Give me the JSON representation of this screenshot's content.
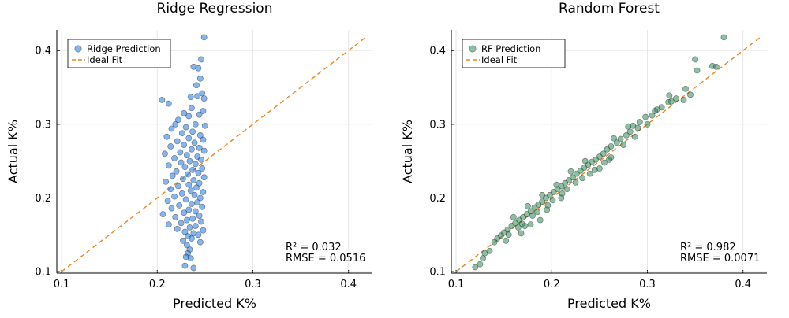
{
  "chart_data": [
    {
      "type": "scatter",
      "title": "Ridge Regression",
      "xlabel": "Predicted K%",
      "ylabel": "Actual K%",
      "xlim": [
        0.095,
        0.425
      ],
      "ylim": [
        0.098,
        0.428
      ],
      "xticks": [
        "0.1",
        "0.2",
        "0.3",
        "0.4"
      ],
      "yticks": [
        "0.1",
        "0.2",
        "0.3",
        "0.4"
      ],
      "grid": true,
      "legend_position": "top-left",
      "series": [
        {
          "name": "Ridge Prediction",
          "kind": "points",
          "color": "#1f78e0",
          "points": [
            [
              0.249,
              0.418
            ],
            [
              0.246,
              0.388
            ],
            [
              0.238,
              0.378
            ],
            [
              0.243,
              0.376
            ],
            [
              0.245,
              0.362
            ],
            [
              0.241,
              0.353
            ],
            [
              0.247,
              0.342
            ],
            [
              0.242,
              0.338
            ],
            [
              0.235,
              0.337
            ],
            [
              0.249,
              0.335
            ],
            [
              0.205,
              0.333
            ],
            [
              0.212,
              0.328
            ],
            [
              0.236,
              0.322
            ],
            [
              0.248,
              0.318
            ],
            [
              0.228,
              0.315
            ],
            [
              0.244,
              0.313
            ],
            [
              0.233,
              0.311
            ],
            [
              0.222,
              0.306
            ],
            [
              0.219,
              0.3
            ],
            [
              0.24,
              0.3
            ],
            [
              0.25,
              0.298
            ],
            [
              0.23,
              0.296
            ],
            [
              0.215,
              0.294
            ],
            [
              0.237,
              0.29
            ],
            [
              0.226,
              0.288
            ],
            [
              0.245,
              0.285
            ],
            [
              0.21,
              0.283
            ],
            [
              0.233,
              0.281
            ],
            [
              0.248,
              0.279
            ],
            [
              0.221,
              0.277
            ],
            [
              0.239,
              0.275
            ],
            [
              0.228,
              0.272
            ],
            [
              0.214,
              0.27
            ],
            [
              0.244,
              0.268
            ],
            [
              0.236,
              0.266
            ],
            [
              0.249,
              0.264
            ],
            [
              0.224,
              0.262
            ],
            [
              0.208,
              0.26
            ],
            [
              0.231,
              0.258
            ],
            [
              0.242,
              0.256
            ],
            [
              0.218,
              0.254
            ],
            [
              0.246,
              0.252
            ],
            [
              0.234,
              0.25
            ],
            [
              0.225,
              0.248
            ],
            [
              0.24,
              0.246
            ],
            [
              0.212,
              0.244
            ],
            [
              0.229,
              0.242
            ],
            [
              0.247,
              0.24
            ],
            [
              0.237,
              0.238
            ],
            [
              0.22,
              0.236
            ],
            [
              0.243,
              0.234
            ],
            [
              0.232,
              0.232
            ],
            [
              0.216,
              0.23
            ],
            [
              0.249,
              0.228
            ],
            [
              0.227,
              0.226
            ],
            [
              0.238,
              0.224
            ],
            [
              0.209,
              0.222
            ],
            [
              0.244,
              0.22
            ],
            [
              0.233,
              0.218
            ],
            [
              0.222,
              0.216
            ],
            [
              0.241,
              0.214
            ],
            [
              0.214,
              0.212
            ],
            [
              0.235,
              0.21
            ],
            [
              0.248,
              0.208
            ],
            [
              0.226,
              0.206
            ],
            [
              0.239,
              0.204
            ],
            [
              0.218,
              0.202
            ],
            [
              0.245,
              0.2
            ],
            [
              0.23,
              0.198
            ],
            [
              0.211,
              0.196
            ],
            [
              0.242,
              0.194
            ],
            [
              0.236,
              0.192
            ],
            [
              0.223,
              0.19
            ],
            [
              0.247,
              0.188
            ],
            [
              0.215,
              0.186
            ],
            [
              0.233,
              0.184
            ],
            [
              0.24,
              0.182
            ],
            [
              0.228,
              0.18
            ],
            [
              0.206,
              0.178
            ],
            [
              0.244,
              0.176
            ],
            [
              0.219,
              0.174
            ],
            [
              0.237,
              0.172
            ],
            [
              0.231,
              0.17
            ],
            [
              0.246,
              0.168
            ],
            [
              0.225,
              0.166
            ],
            [
              0.212,
              0.164
            ],
            [
              0.24,
              0.162
            ],
            [
              0.234,
              0.16
            ],
            [
              0.221,
              0.158
            ],
            [
              0.248,
              0.156
            ],
            [
              0.229,
              0.154
            ],
            [
              0.238,
              0.152
            ],
            [
              0.243,
              0.15
            ],
            [
              0.232,
              0.148
            ],
            [
              0.236,
              0.145
            ],
            [
              0.227,
              0.142
            ],
            [
              0.245,
              0.14
            ],
            [
              0.231,
              0.136
            ],
            [
              0.234,
              0.13
            ],
            [
              0.232,
              0.125
            ],
            [
              0.23,
              0.12
            ],
            [
              0.235,
              0.118
            ],
            [
              0.229,
              0.108
            ],
            [
              0.238,
              0.105
            ]
          ]
        },
        {
          "name": "Ideal Fit",
          "kind": "line",
          "color": "#e8871e",
          "dashed": true,
          "x": [
            0.1,
            0.42
          ],
          "y": [
            0.1,
            0.42
          ]
        }
      ],
      "annotations": [
        "R² = 0.032",
        "RMSE = 0.0516"
      ]
    },
    {
      "type": "scatter",
      "title": "Random Forest",
      "xlabel": "Predicted K%",
      "ylabel": "Actual K%",
      "xlim": [
        0.095,
        0.425
      ],
      "ylim": [
        0.098,
        0.428
      ],
      "xticks": [
        "0.1",
        "0.2",
        "0.3",
        "0.4"
      ],
      "yticks": [
        "0.1",
        "0.2",
        "0.3",
        "0.4"
      ],
      "grid": true,
      "legend_position": "top-left",
      "series": [
        {
          "name": "RF Prediction",
          "kind": "points",
          "color": "#2e8b57",
          "points": [
            [
              0.38,
              0.418
            ],
            [
              0.35,
              0.388
            ],
            [
              0.368,
              0.379
            ],
            [
              0.372,
              0.378
            ],
            [
              0.352,
              0.373
            ],
            [
              0.34,
              0.348
            ],
            [
              0.345,
              0.34
            ],
            [
              0.33,
              0.335
            ],
            [
              0.338,
              0.333
            ],
            [
              0.325,
              0.331
            ],
            [
              0.322,
              0.33
            ],
            [
              0.315,
              0.323
            ],
            [
              0.31,
              0.32
            ],
            [
              0.305,
              0.312
            ],
            [
              0.298,
              0.31
            ],
            [
              0.292,
              0.303
            ],
            [
              0.285,
              0.298
            ],
            [
              0.282,
              0.29
            ],
            [
              0.278,
              0.285
            ],
            [
              0.272,
              0.28
            ],
            [
              0.268,
              0.275
            ],
            [
              0.262,
              0.27
            ],
            [
              0.258,
              0.266
            ],
            [
              0.254,
              0.26
            ],
            [
              0.25,
              0.256
            ],
            [
              0.246,
              0.252
            ],
            [
              0.242,
              0.249
            ],
            [
              0.238,
              0.245
            ],
            [
              0.234,
              0.241
            ],
            [
              0.23,
              0.237
            ],
            [
              0.226,
              0.233
            ],
            [
              0.222,
              0.228
            ],
            [
              0.218,
              0.224
            ],
            [
              0.214,
              0.22
            ],
            [
              0.21,
              0.216
            ],
            [
              0.206,
              0.212
            ],
            [
              0.202,
              0.208
            ],
            [
              0.198,
              0.204
            ],
            [
              0.194,
              0.2
            ],
            [
              0.19,
              0.195
            ],
            [
              0.186,
              0.191
            ],
            [
              0.182,
              0.187
            ],
            [
              0.178,
              0.182
            ],
            [
              0.174,
              0.178
            ],
            [
              0.17,
              0.174
            ],
            [
              0.166,
              0.17
            ],
            [
              0.162,
              0.166
            ],
            [
              0.158,
              0.162
            ],
            [
              0.154,
              0.157
            ],
            [
              0.15,
              0.153
            ],
            [
              0.147,
              0.149
            ],
            [
              0.143,
              0.145
            ],
            [
              0.29,
              0.295
            ],
            [
              0.275,
              0.272
            ],
            [
              0.255,
              0.248
            ],
            [
              0.24,
              0.233
            ],
            [
              0.225,
              0.221
            ],
            [
              0.211,
              0.206
            ],
            [
              0.196,
              0.19
            ],
            [
              0.18,
              0.176
            ],
            [
              0.165,
              0.16
            ],
            [
              0.3,
              0.3
            ],
            [
              0.287,
              0.283
            ],
            [
              0.262,
              0.255
            ],
            [
              0.245,
              0.238
            ],
            [
              0.232,
              0.227
            ],
            [
              0.216,
              0.212
            ],
            [
              0.201,
              0.197
            ],
            [
              0.185,
              0.181
            ],
            [
              0.169,
              0.165
            ],
            [
              0.155,
              0.15
            ],
            [
              0.235,
              0.25
            ],
            [
              0.22,
              0.236
            ],
            [
              0.205,
              0.218
            ],
            [
              0.19,
              0.204
            ],
            [
              0.175,
              0.189
            ],
            [
              0.16,
              0.174
            ],
            [
              0.265,
              0.281
            ],
            [
              0.28,
              0.297
            ],
            [
              0.308,
              0.318
            ],
            [
              0.323,
              0.339
            ],
            [
              0.188,
              0.17
            ],
            [
              0.172,
              0.162
            ],
            [
              0.25,
              0.24
            ],
            [
              0.26,
              0.252
            ],
            [
              0.195,
              0.184
            ],
            [
              0.21,
              0.2
            ],
            [
              0.13,
              0.125
            ],
            [
              0.128,
              0.118
            ],
            [
              0.135,
              0.128
            ],
            [
              0.12,
              0.106
            ],
            [
              0.125,
              0.11
            ],
            [
              0.14,
              0.14
            ],
            [
              0.152,
              0.142
            ],
            [
              0.168,
              0.152
            ],
            [
              0.178,
              0.164
            ]
          ]
        },
        {
          "name": "Ideal Fit",
          "kind": "line",
          "color": "#e8871e",
          "dashed": true,
          "x": [
            0.1,
            0.42
          ],
          "y": [
            0.1,
            0.42
          ]
        }
      ],
      "annotations": [
        "R² = 0.982",
        "RMSE = 0.0071"
      ]
    }
  ]
}
